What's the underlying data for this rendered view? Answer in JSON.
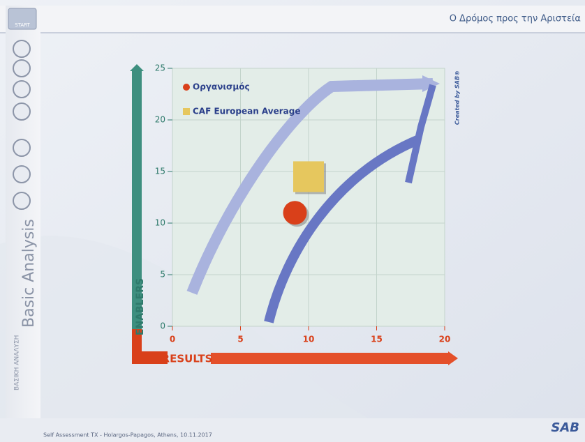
{
  "header": {
    "start": "START",
    "title": "Ο Δρόμος προς την Αριστεία"
  },
  "sidebar": {
    "title": "Basic Analysis",
    "subtitle": "ΒΑΣΙΚΗ ΑΝΑΛΥΣΗ"
  },
  "chart_data": {
    "type": "scatter",
    "x_label": "RESULTS",
    "y_label": "ENABLERS",
    "credit": "Created by SAB®",
    "series": [
      {
        "name": "Οργανισμός",
        "color": "#d9401a",
        "marker": "circle",
        "x": [
          9
        ],
        "values": [
          11
        ]
      },
      {
        "name": "CAF European Average",
        "color": "#e6c75e",
        "marker": "square",
        "x": [
          10
        ],
        "values": [
          14.5
        ]
      }
    ],
    "xlim": [
      0,
      20
    ],
    "xticks": [
      0,
      5,
      10,
      15,
      20
    ],
    "ylim": [
      0,
      25
    ],
    "yticks": [
      0,
      5,
      10,
      15,
      20,
      25
    ],
    "grid": true,
    "legend": "top-left"
  },
  "footer": {
    "text": "Self Assessment TX - Holargos-Papagos, Athens, 10.11.2017",
    "logo": "SAB"
  }
}
